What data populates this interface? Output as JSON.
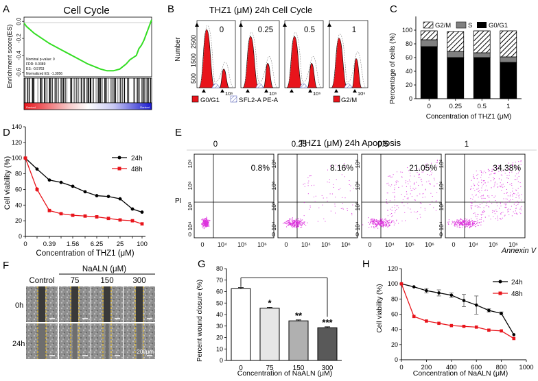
{
  "panels": {
    "A": {
      "letter": "A",
      "title": "Cell Cycle",
      "ylabel": "Enrichment score(ES)",
      "yticks": [
        "0.0",
        "-0.2",
        "-0.4",
        "-0.6"
      ],
      "stats": [
        "Nominal p-value: 0",
        "FDR: 0.0389",
        "ES: -0.5763",
        "Normalized ES: -1.3956"
      ],
      "bar_left": "Ranked",
      "bar_right": "Ranked",
      "chart_data": {
        "type": "line",
        "title": "Cell Cycle",
        "ylabel": "Enrichment score(ES)",
        "x": [
          0,
          2,
          5,
          8,
          12,
          16,
          20,
          25,
          30,
          35,
          40,
          45,
          50,
          55,
          60,
          65,
          70,
          75,
          80,
          83,
          86,
          88,
          90,
          92,
          94,
          96,
          98,
          100
        ],
        "y": [
          -0.02,
          -0.06,
          -0.1,
          -0.14,
          -0.18,
          -0.22,
          -0.26,
          -0.3,
          -0.34,
          -0.38,
          -0.42,
          -0.46,
          -0.5,
          -0.53,
          -0.56,
          -0.58,
          -0.58,
          -0.56,
          -0.5,
          -0.45,
          -0.42,
          -0.4,
          -0.32,
          -0.28,
          -0.22,
          -0.14,
          -0.06,
          0.02
        ],
        "ylim": [
          -0.65,
          0.05
        ]
      }
    },
    "B": {
      "letter": "B",
      "title": "THZ1 (μM) 24h Cell Cycle",
      "ylabel": "Number",
      "yticks": [
        "500",
        "1500",
        "2500"
      ],
      "doses": [
        "0",
        "0.25",
        "0.5",
        "1"
      ],
      "xtick": "10⁶",
      "xlabel": "FL2-A PE-A",
      "legend": [
        "G0/G1",
        "S",
        "G2/M"
      ]
    },
    "C": {
      "letter": "C",
      "ylabel": "Percentage of cells (%)",
      "xlabel": "Concentration of THZ1 (μM)",
      "yticks": [
        "0",
        "20",
        "40",
        "60",
        "80",
        "100"
      ],
      "legend": [
        "G2/M",
        "S",
        "G0/G1"
      ],
      "chart_data": {
        "type": "bar",
        "stacked": true,
        "categories": [
          "0",
          "0.25",
          "0.5",
          "1"
        ],
        "series": [
          {
            "name": "G0/G1",
            "values": [
              76,
              60,
              60,
              53
            ]
          },
          {
            "name": "S",
            "values": [
              10,
              9,
              7,
              8
            ]
          },
          {
            "name": "G2/M",
            "values": [
              13,
              29,
              32,
              38
            ]
          }
        ],
        "ylabel": "Percentage of cells (%)",
        "xlabel": "Concentration of THZ1 (μM)",
        "ylim": [
          0,
          120
        ]
      }
    },
    "D": {
      "letter": "D",
      "ylabel": "Cell viability (%)",
      "xlabel": "Concentration of THZ1 (μM)",
      "yticks": [
        "0",
        "20",
        "40",
        "60",
        "80",
        "100",
        "120",
        "140"
      ],
      "xticks": [
        "0",
        "0.39",
        "1.56",
        "6.25",
        "25",
        "100"
      ],
      "chart_data": {
        "type": "line",
        "x": [
          0,
          0.195,
          0.39,
          0.78,
          1.56,
          3.125,
          6.25,
          12.5,
          25,
          50,
          100
        ],
        "series": [
          {
            "name": "24h",
            "values": [
              100,
              86,
              72,
              69,
              64,
              57,
              52,
              51,
              48,
              35,
              31
            ]
          },
          {
            "name": "48h",
            "values": [
              100,
              60,
              33,
              29,
              27,
              26,
              25,
              23,
              21,
              20,
              16
            ]
          }
        ],
        "xlabel": "Concentration of THZ1 (μM)",
        "ylabel": "Cell viability (%)",
        "ylim": [
          0,
          140
        ]
      }
    },
    "E": {
      "letter": "E",
      "title": "THZ1 (μM) 24h Apoptosis",
      "ylabel": "PI",
      "xlabel": "Annexin V",
      "doses": [
        "0",
        "0.25",
        "0.5",
        "1"
      ],
      "percent": [
        "0.8%",
        "8.16%",
        "21.05%",
        "34.38%"
      ],
      "ticks": [
        "0",
        "10⁴",
        "10⁵",
        "10⁶"
      ]
    },
    "F": {
      "letter": "F",
      "header": "NaALN (μM)",
      "cols": [
        "Control",
        "75",
        "150",
        "300"
      ],
      "rows": [
        "0h",
        "24h"
      ],
      "scale": "200μm"
    },
    "G": {
      "letter": "G",
      "ylabel": "Percent wound closure (%)",
      "xlabel": "Concentration of NaALN (μM)",
      "yticks": [
        "0",
        "10",
        "20",
        "30",
        "40",
        "50",
        "60",
        "70",
        "80"
      ],
      "stars": [
        "*",
        "**",
        "***"
      ],
      "chart_data": {
        "type": "bar",
        "categories": [
          "0",
          "75",
          "150",
          "300"
        ],
        "values": [
          62.5,
          45.5,
          34.5,
          28.5
        ],
        "errors": [
          1.0,
          0.8,
          0.8,
          0.8
        ],
        "xlabel": "Concentration of NaALN (μM)",
        "ylabel": "Percent wound closure (%)",
        "ylim": [
          0,
          80
        ]
      }
    },
    "H": {
      "letter": "H",
      "ylabel": "Cell viability (%)",
      "xlabel": "Concentration of NaALN (μM)",
      "yticks": [
        "0",
        "20",
        "40",
        "60",
        "80",
        "100",
        "120"
      ],
      "xticks": [
        "0",
        "200",
        "400",
        "600",
        "800",
        "1000"
      ],
      "chart_data": {
        "type": "line",
        "x": [
          0,
          100,
          200,
          300,
          400,
          500,
          600,
          700,
          800,
          900
        ],
        "series": [
          {
            "name": "24h",
            "values": [
              100,
              96,
              91,
              88,
              85,
              78,
              72,
              65,
              61,
              33
            ],
            "errors": [
              0,
              1,
              3,
              4,
              3,
              8,
              12,
              2,
              2,
              1
            ]
          },
          {
            "name": "48h",
            "values": [
              100,
              57,
              51,
              48,
              45,
              44,
              43,
              39,
              38,
              28
            ],
            "errors": [
              0,
              1,
              1,
              1,
              1,
              1,
              1,
              1,
              1,
              1
            ]
          }
        ],
        "xlabel": "Concentration of NaALN (μM)",
        "ylabel": "Cell viability (%)",
        "ylim": [
          0,
          120
        ],
        "xlim": [
          0,
          1000
        ]
      }
    }
  },
  "colors": {
    "green": "#33dd22",
    "black": "#000000",
    "red": "#e8141b",
    "gray": "#808080",
    "magenta": "#dd33dd",
    "barlight": "#e6e6e6",
    "barmid": "#b0b0b0",
    "bardark": "#595959"
  }
}
